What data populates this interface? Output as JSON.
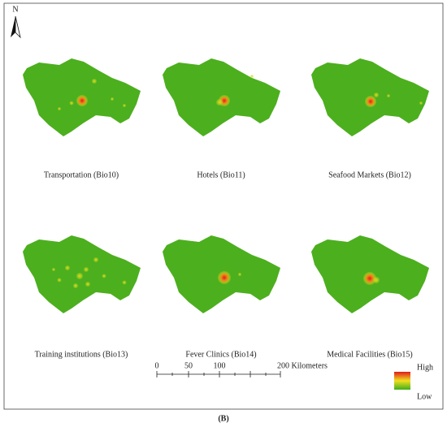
{
  "north_arrow": {
    "label": "N"
  },
  "panels": [
    {
      "caption": "Transportation (Bio10)"
    },
    {
      "caption": "Hotels (Bio11)"
    },
    {
      "caption": "Seafood Markets (Bio12)"
    },
    {
      "caption": "Training institutions (Bio13)"
    },
    {
      "caption": "Fever Clinics (Bio14)"
    },
    {
      "caption": "Medical Facilities (Bio15)"
    }
  ],
  "scale_bar": {
    "labels": [
      "0",
      "50",
      "100",
      "200 Kilometers"
    ]
  },
  "legend": {
    "high": "High",
    "low": "Low"
  },
  "figure_label": "(B)"
}
